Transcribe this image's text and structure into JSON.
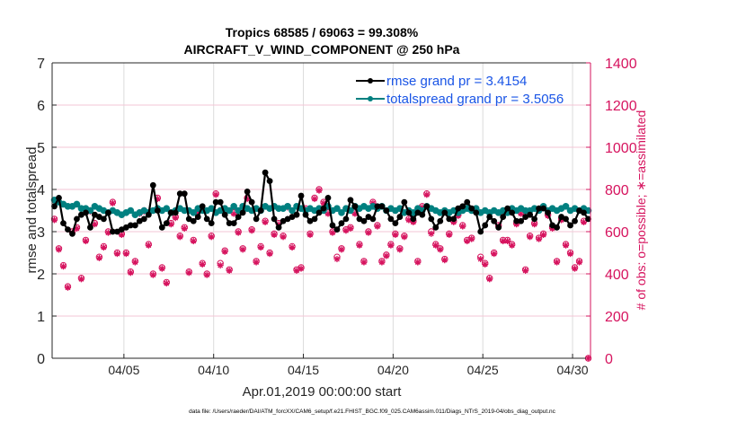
{
  "chart_data": {
    "type": "line",
    "title": "Tropics 68585 / 69063 = 99.308%",
    "subtitle": "AIRCRAFT_V_WIND_COMPONENT @ 250 hPa",
    "xlabel": "Apr.01,2019 00:00:00 start",
    "ylabel": "rmse and totalspread",
    "ylabel_right": "# of obs: o=possible; ∗=assimilated",
    "footnote": "data file: /Users/raeder/DAI/ATM_forcXX/CAM6_setup/f.e21.FHIST_BGC.f09_025.CAM6assim.011/Diags_NTrS_2019-04/obs_diag_output.nc",
    "xlim": [
      0,
      30
    ],
    "ylim": [
      0,
      7
    ],
    "ylim_right": [
      0,
      1400
    ],
    "x_unit": "days since Apr.01,2019 00:00:00",
    "x_ticks": [
      4,
      9,
      14,
      19,
      24,
      29
    ],
    "x_tick_labels": [
      "04/05",
      "04/10",
      "04/15",
      "04/20",
      "04/25",
      "04/30"
    ],
    "y_ticks": [
      0,
      1,
      2,
      3,
      4,
      5,
      6,
      7
    ],
    "y_tick_labels": [
      "0",
      "1",
      "2",
      "3",
      "4",
      "5",
      "6",
      "7"
    ],
    "y_ticks_right": [
      0,
      200,
      400,
      600,
      800,
      1000,
      1200,
      1400
    ],
    "y_tick_labels_right": [
      "0",
      "200",
      "400",
      "600",
      "800",
      "1000",
      "1200",
      "1400"
    ],
    "grid": true,
    "legend_position": "top-right",
    "x_step_days": 0.25,
    "x_start_days": 0.125,
    "series": [
      {
        "name": "rmse grand pr = 3.4154",
        "axis": "left",
        "color": "#000000",
        "marker": "asterisk",
        "values": [
          3.6,
          3.8,
          3.2,
          3.05,
          2.95,
          3.3,
          3.4,
          3.45,
          3.1,
          3.4,
          3.35,
          3.3,
          3.45,
          3.0,
          3.0,
          3.05,
          3.1,
          3.15,
          3.15,
          3.25,
          3.3,
          3.4,
          4.1,
          3.5,
          3.1,
          3.2,
          3.45,
          3.45,
          3.9,
          3.9,
          3.3,
          3.25,
          3.35,
          3.6,
          3.3,
          3.2,
          3.7,
          3.7,
          3.4,
          3.2,
          3.2,
          3.35,
          3.45,
          3.95,
          3.7,
          3.3,
          3.5,
          4.4,
          4.2,
          3.3,
          3.1,
          3.25,
          3.3,
          3.35,
          3.4,
          3.85,
          3.4,
          3.25,
          3.3,
          3.45,
          3.55,
          3.8,
          3.15,
          3.05,
          3.2,
          3.3,
          3.75,
          3.6,
          3.3,
          3.25,
          3.35,
          3.3,
          3.6,
          3.6,
          3.5,
          3.3,
          3.2,
          3.35,
          3.7,
          3.45,
          3.3,
          3.45,
          3.4,
          3.6,
          3.3,
          3.1,
          3.25,
          3.45,
          3.3,
          3.3,
          3.55,
          3.6,
          3.7,
          3.55,
          3.45,
          3.0,
          3.15,
          3.35,
          3.25,
          3.1,
          3.35,
          3.55,
          3.45,
          3.25,
          3.25,
          3.35,
          3.4,
          3.3,
          3.55,
          3.55,
          3.45,
          3.15,
          3.1,
          3.35,
          3.3,
          3.15,
          3.25,
          3.5,
          3.45,
          3.3
        ]
      },
      {
        "name": "totalspread grand pr = 3.5056",
        "axis": "left",
        "color": "#008080",
        "marker": "dot",
        "values": [
          3.75,
          3.7,
          3.65,
          3.6,
          3.6,
          3.65,
          3.55,
          3.55,
          3.5,
          3.6,
          3.55,
          3.5,
          3.45,
          3.5,
          3.45,
          3.4,
          3.45,
          3.5,
          3.4,
          3.45,
          3.5,
          3.45,
          3.5,
          3.55,
          3.5,
          3.55,
          3.45,
          3.5,
          3.55,
          3.5,
          3.5,
          3.45,
          3.55,
          3.5,
          3.5,
          3.55,
          3.45,
          3.5,
          3.55,
          3.5,
          3.6,
          3.5,
          3.6,
          3.55,
          3.5,
          3.55,
          3.5,
          3.6,
          3.55,
          3.6,
          3.55,
          3.55,
          3.6,
          3.5,
          3.6,
          3.55,
          3.5,
          3.55,
          3.5,
          3.55,
          3.5,
          3.6,
          3.5,
          3.55,
          3.45,
          3.55,
          3.5,
          3.6,
          3.55,
          3.6,
          3.55,
          3.6,
          3.55,
          3.6,
          3.5,
          3.55,
          3.5,
          3.55,
          3.45,
          3.5,
          3.45,
          3.55,
          3.5,
          3.6,
          3.55,
          3.5,
          3.45,
          3.5,
          3.45,
          3.5,
          3.45,
          3.5,
          3.55,
          3.5,
          3.55,
          3.45,
          3.5,
          3.45,
          3.5,
          3.45,
          3.5,
          3.45,
          3.55,
          3.5,
          3.55,
          3.5,
          3.5,
          3.55,
          3.5,
          3.6,
          3.5,
          3.55,
          3.5,
          3.55,
          3.6,
          3.5,
          3.55,
          3.5,
          3.55,
          3.5
        ]
      },
      {
        "name": "# obs possible",
        "axis": "right",
        "color": "#d6135e",
        "marker": "circle",
        "values": [
          660,
          520,
          440,
          340,
          600,
          620,
          380,
          560,
          700,
          640,
          480,
          530,
          600,
          740,
          500,
          590,
          500,
          410,
          460,
          690,
          700,
          540,
          400,
          760,
          430,
          360,
          640,
          670,
          580,
          620,
          410,
          560,
          700,
          450,
          400,
          580,
          780,
          450,
          510,
          420,
          690,
          600,
          520,
          760,
          610,
          460,
          530,
          650,
          500,
          590,
          640,
          580,
          720,
          530,
          420,
          430,
          710,
          590,
          760,
          800,
          740,
          690,
          600,
          480,
          520,
          610,
          620,
          690,
          540,
          460,
          600,
          740,
          630,
          460,
          490,
          540,
          590,
          520,
          580,
          660,
          650,
          460,
          720,
          780,
          600,
          540,
          520,
          470,
          590,
          650,
          680,
          630,
          560,
          570,
          710,
          480,
          450,
          380,
          500,
          630,
          560,
          560,
          540,
          640,
          690,
          420,
          580,
          640,
          570,
          590,
          680,
          620,
          460,
          660,
          540,
          500,
          430,
          460,
          650,
          0
        ]
      },
      {
        "name": "# obs assimilated",
        "axis": "right",
        "color": "#d6135e",
        "marker": "asterisk",
        "values": [
          655,
          515,
          435,
          335,
          595,
          615,
          375,
          555,
          695,
          635,
          475,
          525,
          595,
          735,
          495,
          585,
          495,
          405,
          455,
          685,
          695,
          535,
          395,
          755,
          425,
          355,
          635,
          665,
          575,
          615,
          405,
          555,
          695,
          445,
          395,
          575,
          775,
          440,
          505,
          415,
          685,
          595,
          515,
          755,
          605,
          455,
          525,
          645,
          495,
          585,
          635,
          575,
          715,
          525,
          415,
          425,
          705,
          585,
          755,
          795,
          735,
          685,
          595,
          470,
          515,
          605,
          615,
          685,
          535,
          455,
          595,
          735,
          625,
          455,
          485,
          535,
          585,
          515,
          575,
          655,
          645,
          455,
          715,
          775,
          590,
          535,
          515,
          465,
          585,
          645,
          675,
          625,
          555,
          565,
          705,
          470,
          445,
          375,
          495,
          625,
          555,
          555,
          535,
          635,
          685,
          415,
          575,
          635,
          565,
          585,
          675,
          615,
          455,
          655,
          535,
          495,
          425,
          455,
          645,
          0
        ]
      }
    ]
  }
}
